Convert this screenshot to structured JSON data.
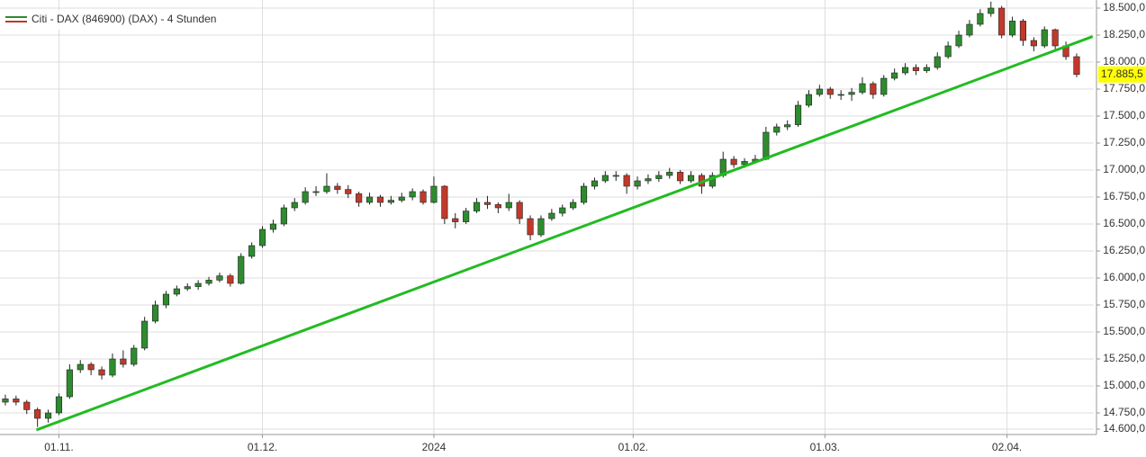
{
  "chart_data": {
    "type": "candlestick",
    "series": [
      {
        "name": "Citi - DAX (846900) (DAX) - 4 Stunden",
        "up_color": "#2e8b2e",
        "down_color": "#c0392b",
        "ohlc": [
          [
            14850,
            14920,
            14820,
            14880
          ],
          [
            14880,
            14910,
            14820,
            14850
          ],
          [
            14850,
            14870,
            14740,
            14780
          ],
          [
            14780,
            14800,
            14620,
            14700
          ],
          [
            14700,
            14780,
            14660,
            14750
          ],
          [
            14750,
            14930,
            14730,
            14900
          ],
          [
            14900,
            15200,
            14880,
            15150
          ],
          [
            15150,
            15240,
            15120,
            15200
          ],
          [
            15200,
            15220,
            15100,
            15150
          ],
          [
            15150,
            15180,
            15060,
            15100
          ],
          [
            15100,
            15300,
            15080,
            15250
          ],
          [
            15250,
            15330,
            15170,
            15200
          ],
          [
            15200,
            15380,
            15180,
            15350
          ],
          [
            15350,
            15640,
            15330,
            15600
          ],
          [
            15600,
            15790,
            15580,
            15750
          ],
          [
            15750,
            15880,
            15720,
            15850
          ],
          [
            15850,
            15930,
            15830,
            15900
          ],
          [
            15900,
            15950,
            15880,
            15920
          ],
          [
            15920,
            15980,
            15890,
            15950
          ],
          [
            15950,
            16010,
            15930,
            15980
          ],
          [
            15980,
            16050,
            15960,
            16020
          ],
          [
            16020,
            16040,
            15920,
            15950
          ],
          [
            15950,
            16230,
            15940,
            16200
          ],
          [
            16200,
            16330,
            16180,
            16300
          ],
          [
            16300,
            16480,
            16280,
            16450
          ],
          [
            16450,
            16540,
            16420,
            16500
          ],
          [
            16500,
            16680,
            16480,
            16650
          ],
          [
            16650,
            16740,
            16620,
            16700
          ],
          [
            16700,
            16840,
            16680,
            16800
          ],
          [
            16800,
            16850,
            16760,
            16800
          ],
          [
            16800,
            16970,
            16780,
            16850
          ],
          [
            16850,
            16880,
            16780,
            16820
          ],
          [
            16820,
            16860,
            16740,
            16780
          ],
          [
            16780,
            16800,
            16660,
            16700
          ],
          [
            16700,
            16790,
            16680,
            16750
          ],
          [
            16750,
            16770,
            16660,
            16700
          ],
          [
            16700,
            16760,
            16680,
            16720
          ],
          [
            16720,
            16790,
            16700,
            16750
          ],
          [
            16750,
            16830,
            16720,
            16800
          ],
          [
            16800,
            16820,
            16680,
            16700
          ],
          [
            16700,
            16940,
            16690,
            16850
          ],
          [
            16850,
            16860,
            16500,
            16550
          ],
          [
            16550,
            16600,
            16460,
            16520
          ],
          [
            16520,
            16650,
            16500,
            16620
          ],
          [
            16620,
            16740,
            16600,
            16700
          ],
          [
            16700,
            16760,
            16640,
            16680
          ],
          [
            16680,
            16700,
            16600,
            16650
          ],
          [
            16650,
            16780,
            16620,
            16700
          ],
          [
            16700,
            16720,
            16500,
            16550
          ],
          [
            16550,
            16580,
            16350,
            16400
          ],
          [
            16400,
            16580,
            16380,
            16550
          ],
          [
            16550,
            16640,
            16530,
            16600
          ],
          [
            16600,
            16680,
            16570,
            16650
          ],
          [
            16650,
            16730,
            16630,
            16700
          ],
          [
            16700,
            16880,
            16680,
            16850
          ],
          [
            16850,
            16930,
            16820,
            16900
          ],
          [
            16900,
            16990,
            16880,
            16950
          ],
          [
            16950,
            16990,
            16900,
            16950
          ],
          [
            16950,
            16970,
            16780,
            16850
          ],
          [
            16850,
            16940,
            16820,
            16900
          ],
          [
            16900,
            16960,
            16870,
            16920
          ],
          [
            16920,
            16990,
            16890,
            16950
          ],
          [
            16950,
            17020,
            16920,
            16980
          ],
          [
            16980,
            17000,
            16870,
            16900
          ],
          [
            16900,
            16990,
            16880,
            16950
          ],
          [
            16950,
            16970,
            16780,
            16850
          ],
          [
            16850,
            16980,
            16830,
            16950
          ],
          [
            16950,
            17170,
            16930,
            17100
          ],
          [
            17100,
            17130,
            17020,
            17050
          ],
          [
            17050,
            17110,
            17020,
            17080
          ],
          [
            17080,
            17140,
            17060,
            17100
          ],
          [
            17100,
            17400,
            17090,
            17350
          ],
          [
            17350,
            17430,
            17320,
            17400
          ],
          [
            17400,
            17460,
            17370,
            17420
          ],
          [
            17420,
            17640,
            17400,
            17600
          ],
          [
            17600,
            17740,
            17580,
            17700
          ],
          [
            17700,
            17790,
            17680,
            17750
          ],
          [
            17750,
            17770,
            17660,
            17700
          ],
          [
            17700,
            17740,
            17650,
            17700
          ],
          [
            17700,
            17760,
            17640,
            17720
          ],
          [
            17720,
            17860,
            17700,
            17800
          ],
          [
            17800,
            17820,
            17660,
            17700
          ],
          [
            17700,
            17880,
            17680,
            17850
          ],
          [
            17850,
            17940,
            17830,
            17900
          ],
          [
            17900,
            17990,
            17880,
            17950
          ],
          [
            17950,
            17980,
            17880,
            17920
          ],
          [
            17920,
            17980,
            17900,
            17950
          ],
          [
            17950,
            18090,
            17930,
            18050
          ],
          [
            18050,
            18190,
            18030,
            18150
          ],
          [
            18150,
            18290,
            18130,
            18250
          ],
          [
            18250,
            18390,
            18230,
            18350
          ],
          [
            18350,
            18490,
            18330,
            18450
          ],
          [
            18450,
            18560,
            18420,
            18500
          ],
          [
            18500,
            18520,
            18220,
            18250
          ],
          [
            18250,
            18420,
            18230,
            18380
          ],
          [
            18380,
            18400,
            18150,
            18200
          ],
          [
            18200,
            18230,
            18100,
            18150
          ],
          [
            18150,
            18330,
            18130,
            18300
          ],
          [
            18300,
            18310,
            18100,
            18150
          ],
          [
            18150,
            18190,
            18020,
            18050
          ],
          [
            18050,
            18080,
            17860,
            17885.5
          ]
        ]
      }
    ],
    "trendline": {
      "x": [
        2.9,
        101.5
      ],
      "y": [
        14592,
        18237
      ],
      "color": "#22bb22"
    },
    "last_price": {
      "value": 17885.5,
      "label": "17.885,5",
      "color": "#ffff00"
    },
    "xlim": [
      -0.5,
      101.6
    ],
    "xticks": [
      {
        "value": 5,
        "label": "01.11."
      },
      {
        "value": 24,
        "label": "01.12."
      },
      {
        "value": 40,
        "label": "2024"
      },
      {
        "value": 58.6,
        "label": "01.02."
      },
      {
        "value": 76.5,
        "label": "01.03."
      },
      {
        "value": 93.5,
        "label": "02.04."
      }
    ],
    "ylim": [
      14550,
      18575
    ],
    "yticks": [
      {
        "value": 14600,
        "label": "14.600,0"
      },
      {
        "value": 14750,
        "label": "14.750,0"
      },
      {
        "value": 15000,
        "label": "15.000,0"
      },
      {
        "value": 15250,
        "label": "15.250,0"
      },
      {
        "value": 15500,
        "label": "15.500,0"
      },
      {
        "value": 15750,
        "label": "15.750,0"
      },
      {
        "value": 16000,
        "label": "16.000,0"
      },
      {
        "value": 16250,
        "label": "16.250,0"
      },
      {
        "value": 16500,
        "label": "16.500,0"
      },
      {
        "value": 16750,
        "label": "16.750,0"
      },
      {
        "value": 17000,
        "label": "17.000,0"
      },
      {
        "value": 17250,
        "label": "17.250,0"
      },
      {
        "value": 17500,
        "label": "17.500,0"
      },
      {
        "value": 17750,
        "label": "17.750,0"
      },
      {
        "value": 18000,
        "label": "18.000,0"
      },
      {
        "value": 18250,
        "label": "18.250,0"
      },
      {
        "value": 18500,
        "label": "18.500,0"
      }
    ],
    "grid": true
  }
}
